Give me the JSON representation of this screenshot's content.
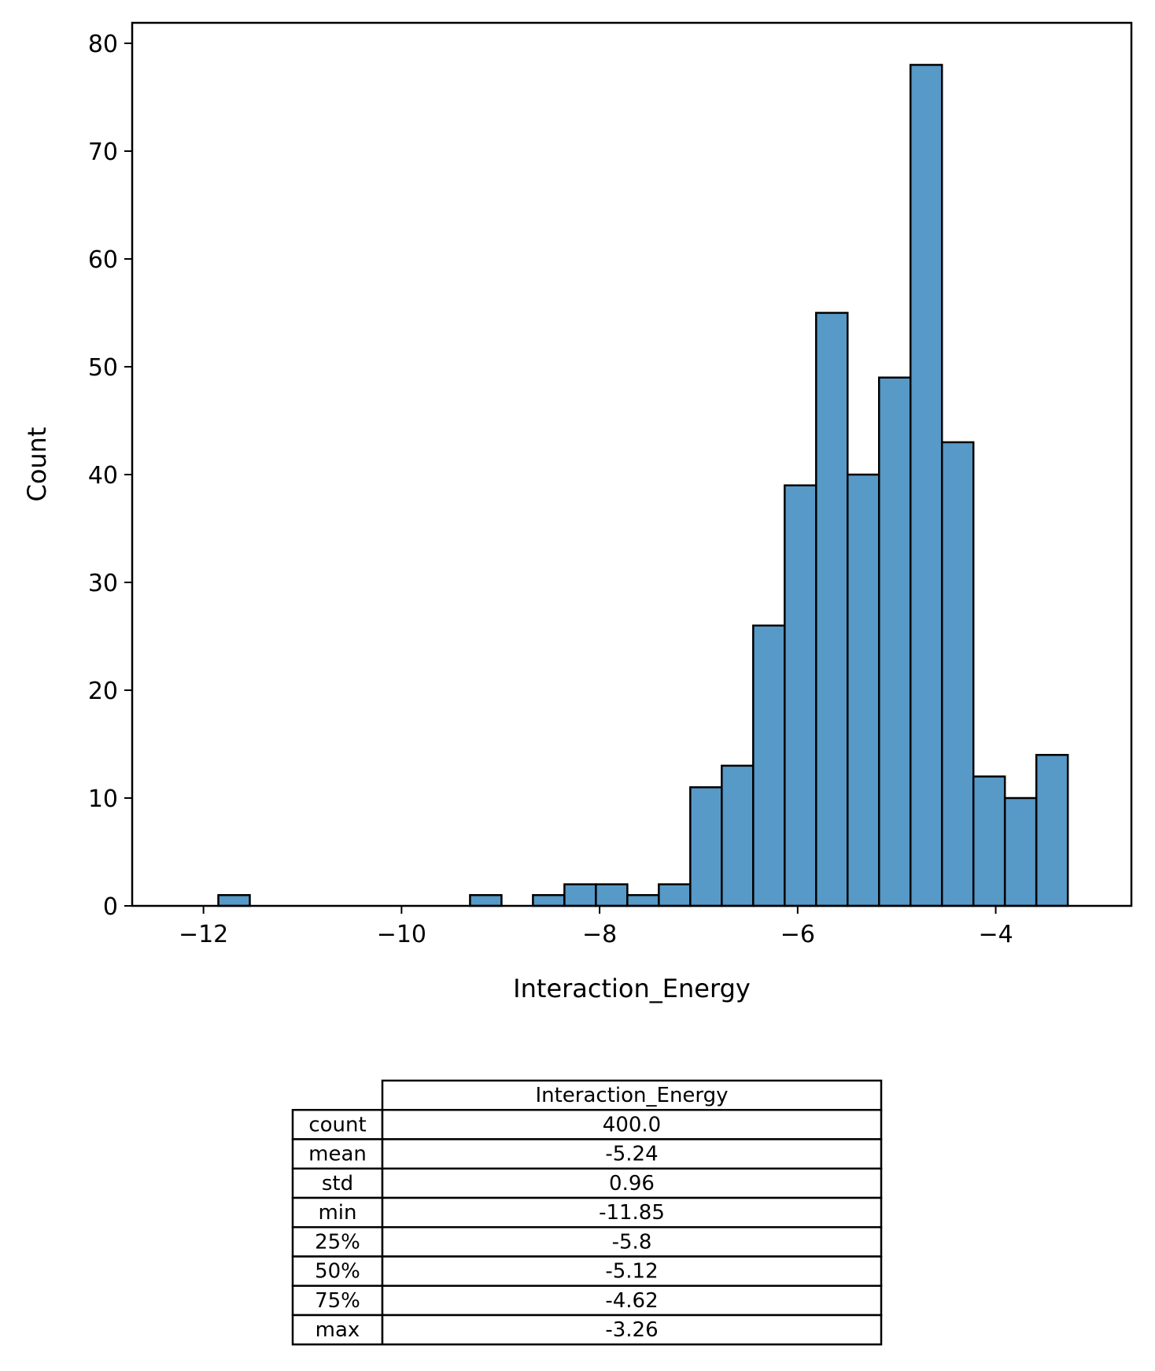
{
  "chart_data": {
    "type": "bar",
    "subtype": "histogram",
    "xlabel": "Interaction_Energy",
    "ylabel": "Count",
    "xlim": [
      -12.72,
      -2.63
    ],
    "ylim": [
      0,
      81.9
    ],
    "x_ticks": [
      -12,
      -10,
      -8,
      -6,
      -4
    ],
    "x_tick_labels": [
      "−12",
      "−10",
      "−8",
      "−6",
      "−4"
    ],
    "y_ticks": [
      0,
      10,
      20,
      30,
      40,
      50,
      60,
      70,
      80
    ],
    "y_tick_labels": [
      "0",
      "10",
      "20",
      "30",
      "40",
      "50",
      "60",
      "70",
      "80"
    ],
    "bin_start": -11.85,
    "bin_width": 0.3177,
    "counts": [
      1,
      0,
      0,
      0,
      0,
      0,
      0,
      0,
      1,
      0,
      1,
      2,
      2,
      1,
      2,
      11,
      13,
      26,
      39,
      55,
      40,
      49,
      78,
      43,
      12,
      10,
      14
    ],
    "bar_color": "#5799c7",
    "edge_color": "#000000",
    "grid": false,
    "legend": "none"
  },
  "table": {
    "column_header": "Interaction_Energy",
    "rows": [
      {
        "label": "count",
        "value": "400.0"
      },
      {
        "label": "mean",
        "value": "-5.24"
      },
      {
        "label": "std",
        "value": "0.96"
      },
      {
        "label": "min",
        "value": "-11.85"
      },
      {
        "label": "25%",
        "value": "-5.8"
      },
      {
        "label": "50%",
        "value": "-5.12"
      },
      {
        "label": "75%",
        "value": "-4.62"
      },
      {
        "label": "max",
        "value": "-3.26"
      }
    ]
  }
}
